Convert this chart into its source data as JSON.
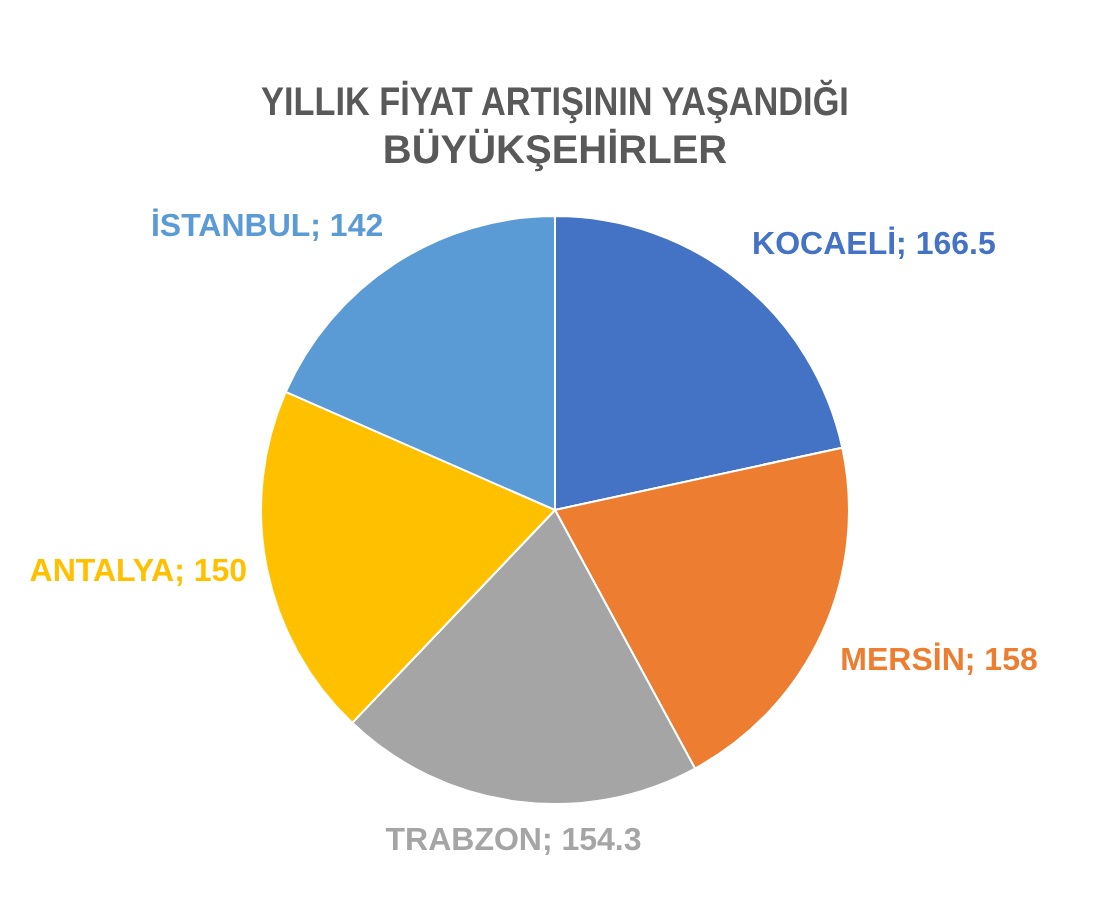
{
  "chart_data": {
    "type": "pie",
    "title": "YILLIK FİYAT ARTIŞININ YAŞANDIĞI BÜYÜKŞEHİRLER",
    "categories": [
      "KOCAELİ",
      "MERSİN",
      "TRABZON",
      "ANTALYA",
      "İSTANBUL"
    ],
    "values": [
      166.5,
      158,
      154.3,
      150,
      142
    ],
    "colors": [
      "#4472c4",
      "#ed7d31",
      "#a5a5a5",
      "#ffc000",
      "#5b9bd5"
    ],
    "value_labels": [
      "; 166.5",
      "; 158",
      "; 154.3",
      "; 150",
      "; 142"
    ],
    "legend": false
  }
}
